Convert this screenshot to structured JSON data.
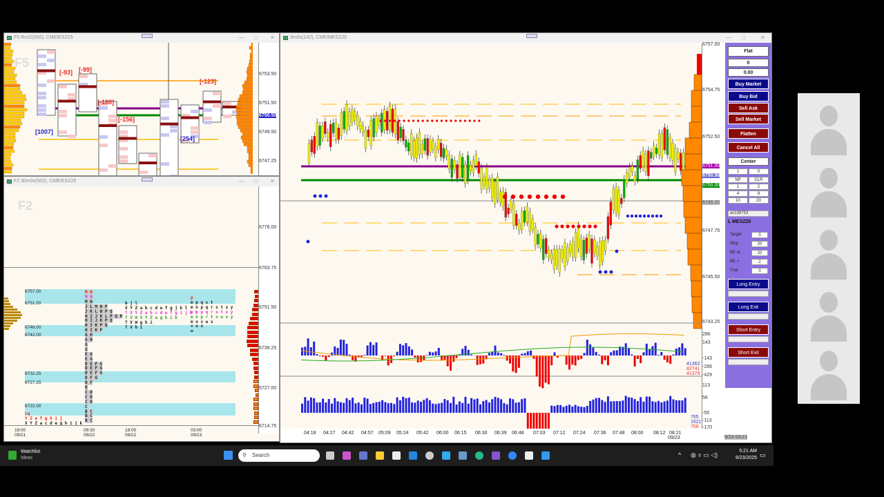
{
  "window1": {
    "title": "F5 Rv10(350), CME/ESZ25",
    "watermark": "F5",
    "deltas": [
      "[-93]",
      "[-99]",
      "[-188]",
      "[-156]",
      "[-123]",
      "[1007]",
      "[254]"
    ],
    "price_labels": [
      "6753.50",
      "6751.50",
      "6750.50",
      "6749.50",
      "6747.25"
    ]
  },
  "window2": {
    "title": "F2 30m0s(502), CME/ESZ25",
    "watermark": "F2",
    "upper_labels": [
      "6776.00",
      "6763.75"
    ],
    "price_labels": [
      "6751.50",
      "6739.25",
      "6727.00",
      "6714.75"
    ],
    "band_labels": [
      "6757.00",
      "6751.50",
      "6746.00",
      "6742.00",
      "6732.25",
      "6727.25",
      "6722.00"
    ],
    "tpo_rows": [
      "M N",
      "M N",
      "M N",
      "J L M N P",
      "J K L N P Q",
      "H I J K L P Q R",
      "H I J K P Q",
      "H I K P Q",
      "H I K P",
      "G H",
      "G H",
      "G",
      "G",
      "E G",
      "E G",
      "D E F G",
      "D E F G",
      "D E F G",
      "D F G",
      "D F",
      "D",
      "C D",
      "C D",
      "C D",
      "C",
      "B C",
      "B C",
      "B C"
    ],
    "tpo_mid": [
      "b j l",
      "X Y Z a b c d e f g j k l",
      "T X Y Z a b c d e f g i j k l",
      "T V W X Y Z a g h i k",
      "T V W g h i",
      "T V h i"
    ],
    "tpo_right": [
      "p",
      "m p q s t",
      "m n p q r s t x y",
      "m n p q r s t x y",
      "m n p r t v w x y",
      "m n v w x",
      "v w x",
      "w"
    ],
    "tpo_left": [
      "Lq",
      "Y Z e f g h i j",
      "X Y Z a c d e g h i j k"
    ],
    "time_ticks": [
      [
        "18:00",
        "09/21"
      ],
      [
        "09:30",
        "09/22"
      ],
      [
        "18:00",
        "09/22"
      ],
      [
        "03:00",
        "09/23"
      ]
    ]
  },
  "main": {
    "title": "3m0s(142), CME/MESZ25",
    "price_labels": [
      "6757.00",
      "6754.75",
      "6752.50",
      "6747.75",
      "6745.50",
      "6743.25"
    ],
    "markers": {
      "purple": "6751.00",
      "blue": "6750.50",
      "green": "6750.00",
      "gray": "6749.20"
    },
    "ind1_labels": [
      "286",
      "143",
      "-143",
      "-286",
      "-429"
    ],
    "ind1_values": [
      "41362",
      "82741",
      "41379"
    ],
    "ind2_labels": [
      "170",
      "113",
      "56",
      "-56",
      "-113",
      "-170"
    ],
    "ind2_values": [
      "765",
      "1521",
      "756"
    ],
    "time_ticks": [
      "04:18",
      "04:27",
      "04:42",
      "04:57",
      "05:09",
      "05:24",
      "05:42",
      "06:00",
      "06:15",
      "06:30",
      "06:39",
      "06:48",
      "07:03",
      "07:12",
      "07:24",
      "07:36",
      "07:48",
      "08:00",
      "08:12",
      "08:21"
    ],
    "last_date": "09/23",
    "corner_stamp": "9/23 03:21"
  },
  "order_panel": {
    "position": "Flat",
    "qty": "0",
    "pnl": "0.00",
    "buy_market": "Buy Market",
    "buy_bid": "Buy Bid",
    "sell_ask": "Sell Ask",
    "sell_market": "Sell Market",
    "flatten": "Flatten",
    "cancel_all": "Cancel All",
    "center": "Center",
    "qty_input": "1",
    "qty_right": "0",
    "grid": [
      "NP",
      "CLR",
      "1",
      "2",
      "4",
      "8",
      "10",
      "20"
    ],
    "account": "ac138753",
    "instrument": "L MESZ25",
    "fields": [
      {
        "label": "Target",
        "value": "0"
      },
      {
        "label": "Stop",
        "value": "20"
      },
      {
        "label": "BE at",
        "value": "20"
      },
      {
        "label": "BE +",
        "value": "2"
      },
      {
        "label": "Trail",
        "value": "0"
      }
    ],
    "long_entry": "Long Entry",
    "long_exit": "Long Exit",
    "short_entry": "Short Entry",
    "short_exit": "Short Exit"
  },
  "taskbar": {
    "widget_title": "Watchlist",
    "widget_sub": "Ideas",
    "search": "Search",
    "time": "5:21 AM",
    "date": "9/23/2025"
  },
  "colors": {
    "background": "#fdf9f0",
    "panel": "#8a6fe0",
    "buy": "#0a0a8a",
    "sell": "#8a0a0a",
    "profile": "#ff8000"
  }
}
